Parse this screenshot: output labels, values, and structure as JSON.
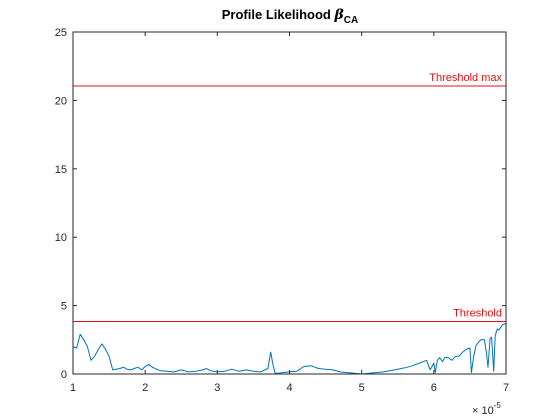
{
  "chart_data": {
    "type": "line",
    "title": {
      "prefix": "Profile Likelihood",
      "symbol": "β",
      "subscript": "CA"
    },
    "xlabel": "",
    "ylabel": "",
    "xlim": [
      1,
      7
    ],
    "ylim": [
      0,
      25
    ],
    "x_scale_factor": {
      "base": "× 10",
      "exponent": "-5"
    },
    "x_ticks": [
      1,
      2,
      3,
      4,
      5,
      6,
      7
    ],
    "x_tick_labels": [
      "1",
      "2",
      "3",
      "4",
      "5",
      "6",
      "7"
    ],
    "y_ticks": [
      0,
      5,
      10,
      15,
      20,
      25
    ],
    "y_tick_labels": [
      "0",
      "5",
      "10",
      "15",
      "20",
      "25"
    ],
    "grid": false,
    "legend": "none",
    "reference_lines": [
      {
        "label": "Threshold max",
        "y": 21.05,
        "color": "#e3101a"
      },
      {
        "label": "Threshold",
        "y": 3.84,
        "color": "#e3101a"
      }
    ],
    "series": [
      {
        "color": "#0072bd",
        "x": [
          1.0,
          1.05,
          1.1,
          1.15,
          1.2,
          1.25,
          1.3,
          1.35,
          1.4,
          1.45,
          1.5,
          1.55,
          1.6,
          1.65,
          1.7,
          1.75,
          1.8,
          1.85,
          1.9,
          1.95,
          2.0,
          2.05,
          2.1,
          2.2,
          2.3,
          2.4,
          2.5,
          2.6,
          2.7,
          2.8,
          2.85,
          2.9,
          3.0,
          3.1,
          3.2,
          3.3,
          3.4,
          3.5,
          3.6,
          3.7,
          3.74,
          3.77,
          3.8,
          3.85,
          3.9,
          4.0,
          4.1,
          4.2,
          4.3,
          4.4,
          4.5,
          4.6,
          4.7,
          4.8,
          4.9,
          5.0,
          5.1,
          5.2,
          5.3,
          5.4,
          5.5,
          5.6,
          5.7,
          5.8,
          5.9,
          5.95,
          6.0,
          6.02,
          6.05,
          6.08,
          6.12,
          6.15,
          6.2,
          6.25,
          6.3,
          6.35,
          6.4,
          6.45,
          6.5,
          6.52,
          6.55,
          6.58,
          6.6,
          6.65,
          6.7,
          6.73,
          6.75,
          6.78,
          6.8,
          6.83,
          6.85,
          6.88,
          6.9,
          6.95,
          7.0
        ],
        "y": [
          2.0,
          1.9,
          2.9,
          2.5,
          2.0,
          1.0,
          1.3,
          1.8,
          2.2,
          1.8,
          1.3,
          0.3,
          0.35,
          0.4,
          0.5,
          0.35,
          0.3,
          0.4,
          0.5,
          0.3,
          0.55,
          0.7,
          0.5,
          0.25,
          0.2,
          0.15,
          0.3,
          0.15,
          0.2,
          0.3,
          0.4,
          0.25,
          0.15,
          0.2,
          0.35,
          0.2,
          0.3,
          0.2,
          0.15,
          0.4,
          1.6,
          0.7,
          0.05,
          0.05,
          0.1,
          0.15,
          0.2,
          0.55,
          0.6,
          0.4,
          0.35,
          0.3,
          0.15,
          0.1,
          0.05,
          0.0,
          0.05,
          0.1,
          0.15,
          0.25,
          0.35,
          0.45,
          0.6,
          0.8,
          1.0,
          0.3,
          0.8,
          0.1,
          1.0,
          1.2,
          0.9,
          1.2,
          1.2,
          1.0,
          1.3,
          1.3,
          1.6,
          1.8,
          1.9,
          0.1,
          1.2,
          2.0,
          2.2,
          2.5,
          2.5,
          1.5,
          0.5,
          2.6,
          2.7,
          0.2,
          2.8,
          3.3,
          3.2,
          3.6,
          3.7
        ]
      }
    ]
  }
}
